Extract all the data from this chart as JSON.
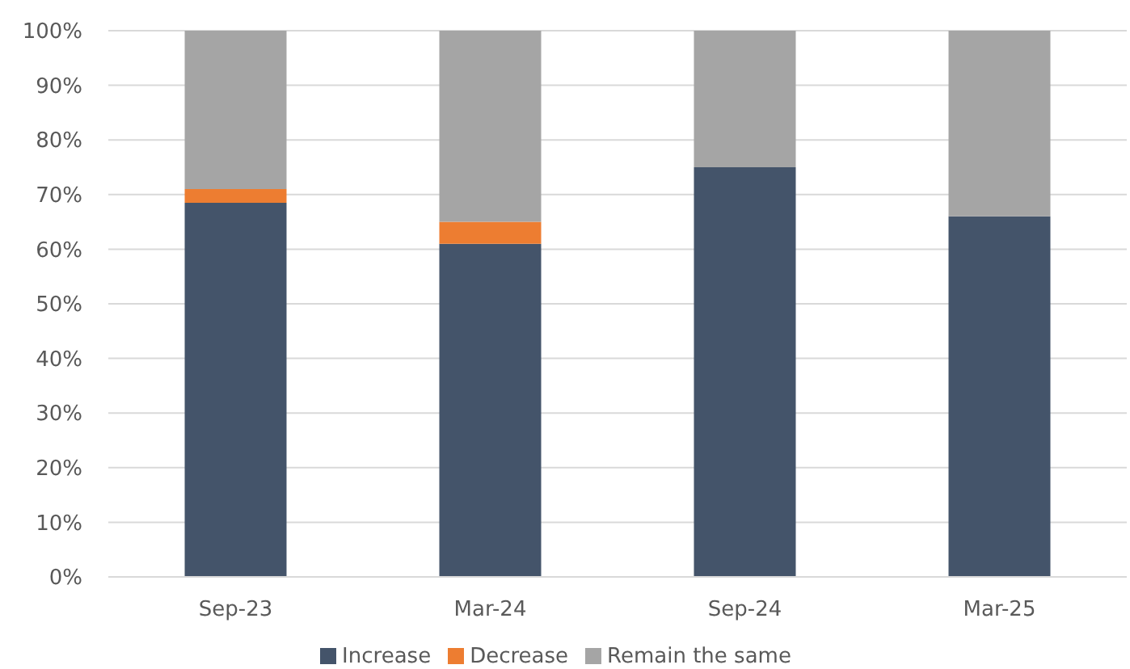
{
  "chart_data": {
    "type": "bar",
    "stacked": true,
    "categories": [
      "Sep-23",
      "Mar-24",
      "Sep-24",
      "Mar-25"
    ],
    "series": [
      {
        "name": "Increase",
        "color": "#44546a",
        "values": [
          68.5,
          61,
          75,
          66
        ]
      },
      {
        "name": "Decrease",
        "color": "#ed7d31",
        "values": [
          2.5,
          4,
          null,
          null
        ]
      },
      {
        "name": "Remain the same",
        "color": "#a5a5a5",
        "values": [
          29,
          35,
          25,
          34
        ]
      }
    ],
    "ylim": [
      0,
      100
    ],
    "yticks": [
      {
        "value": 0,
        "label": "0%"
      },
      {
        "value": 10,
        "label": "10%"
      },
      {
        "value": 20,
        "label": "20%"
      },
      {
        "value": 30,
        "label": "30%"
      },
      {
        "value": 40,
        "label": "40%"
      },
      {
        "value": 50,
        "label": "50%"
      },
      {
        "value": 60,
        "label": "60%"
      },
      {
        "value": 70,
        "label": "70%"
      },
      {
        "value": 80,
        "label": "80%"
      },
      {
        "value": 90,
        "label": "90%"
      },
      {
        "value": 100,
        "label": "100%"
      }
    ],
    "grid": "y",
    "legend": "bottom"
  }
}
